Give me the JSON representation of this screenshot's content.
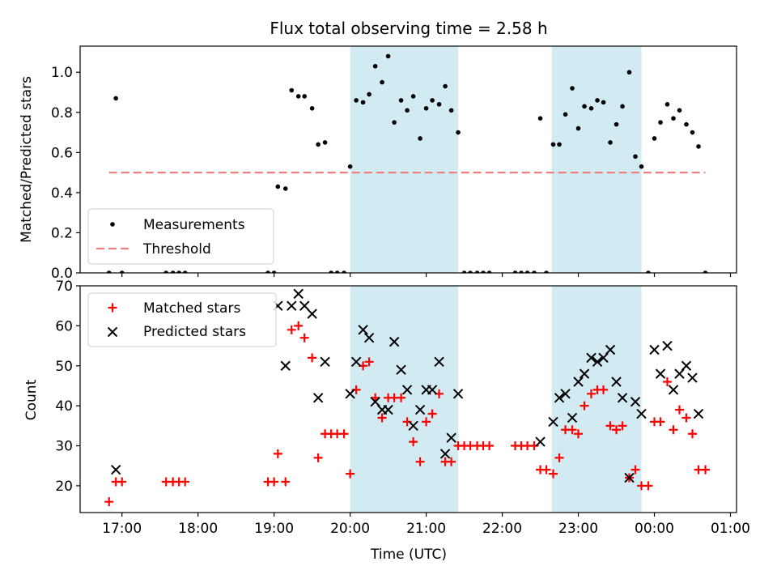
{
  "chart_data": [
    {
      "type": "scatter",
      "title": "Flux total observing time = 2.58 h",
      "ylabel": "Matched/Predicted stars",
      "xlabel": "",
      "ylim": [
        0,
        1.13
      ],
      "yticks": [
        0.0,
        0.2,
        0.4,
        0.6,
        0.8,
        1.0
      ],
      "ytick_labels": [
        "0.0",
        "0.2",
        "0.4",
        "0.6",
        "0.8",
        "1.0"
      ],
      "xlim_hours": [
        16.45,
        25.08
      ],
      "grid": false,
      "legend_position": "lower-left",
      "shaded_intervals_hours": [
        [
          20.0,
          21.42
        ],
        [
          22.65,
          23.83
        ]
      ],
      "shade_color": "#add8e6",
      "threshold": {
        "name": "Threshold",
        "value": 0.5,
        "x_range_hours": [
          16.83,
          24.67
        ],
        "color": "#f08080"
      },
      "series": [
        {
          "name": "Measurements",
          "color": "#000000",
          "marker": "dot",
          "points": [
            [
              16.83,
              0.0
            ],
            [
              16.92,
              0.87
            ],
            [
              17.0,
              0.0
            ],
            [
              17.58,
              0.0
            ],
            [
              17.67,
              0.0
            ],
            [
              17.75,
              0.0
            ],
            [
              17.83,
              0.0
            ],
            [
              18.92,
              0.0
            ],
            [
              19.0,
              0.0
            ],
            [
              19.05,
              0.43
            ],
            [
              19.15,
              0.42
            ],
            [
              19.23,
              0.91
            ],
            [
              19.32,
              0.88
            ],
            [
              19.4,
              0.88
            ],
            [
              19.5,
              0.82
            ],
            [
              19.58,
              0.64
            ],
            [
              19.67,
              0.65
            ],
            [
              19.75,
              0.0
            ],
            [
              19.83,
              0.0
            ],
            [
              19.92,
              0.0
            ],
            [
              20.0,
              0.53
            ],
            [
              20.08,
              0.86
            ],
            [
              20.17,
              0.85
            ],
            [
              20.25,
              0.89
            ],
            [
              20.33,
              1.03
            ],
            [
              20.42,
              0.95
            ],
            [
              20.5,
              1.08
            ],
            [
              20.58,
              0.75
            ],
            [
              20.67,
              0.86
            ],
            [
              20.75,
              0.81
            ],
            [
              20.83,
              0.88
            ],
            [
              20.92,
              0.67
            ],
            [
              21.0,
              0.82
            ],
            [
              21.08,
              0.86
            ],
            [
              21.17,
              0.84
            ],
            [
              21.25,
              0.93
            ],
            [
              21.33,
              0.81
            ],
            [
              21.42,
              0.7
            ],
            [
              21.5,
              0.0
            ],
            [
              21.58,
              0.0
            ],
            [
              21.67,
              0.0
            ],
            [
              21.75,
              0.0
            ],
            [
              21.83,
              0.0
            ],
            [
              22.17,
              0.0
            ],
            [
              22.25,
              0.0
            ],
            [
              22.33,
              0.0
            ],
            [
              22.42,
              0.0
            ],
            [
              22.5,
              0.77
            ],
            [
              22.58,
              0.0
            ],
            [
              22.67,
              0.64
            ],
            [
              22.75,
              0.64
            ],
            [
              22.83,
              0.79
            ],
            [
              22.92,
              0.92
            ],
            [
              23.0,
              0.72
            ],
            [
              23.08,
              0.83
            ],
            [
              23.17,
              0.82
            ],
            [
              23.25,
              0.86
            ],
            [
              23.33,
              0.85
            ],
            [
              23.42,
              0.65
            ],
            [
              23.5,
              0.74
            ],
            [
              23.58,
              0.83
            ],
            [
              23.67,
              1.0
            ],
            [
              23.75,
              0.58
            ],
            [
              23.83,
              0.53
            ],
            [
              23.92,
              0.0
            ],
            [
              24.0,
              0.67
            ],
            [
              24.08,
              0.75
            ],
            [
              24.17,
              0.84
            ],
            [
              24.25,
              0.77
            ],
            [
              24.33,
              0.81
            ],
            [
              24.42,
              0.74
            ],
            [
              24.5,
              0.7
            ],
            [
              24.58,
              0.63
            ],
            [
              24.67,
              0.0
            ]
          ]
        }
      ]
    },
    {
      "type": "scatter",
      "title": "",
      "ylabel": "Count",
      "xlabel": "Time (UTC)",
      "ylim": [
        13.3,
        70.0
      ],
      "yticks": [
        20,
        30,
        40,
        50,
        60,
        70
      ],
      "ytick_labels": [
        "20",
        "30",
        "40",
        "50",
        "60",
        "70"
      ],
      "xlim_hours": [
        16.45,
        25.08
      ],
      "xticks_hours": [
        17,
        18,
        19,
        20,
        21,
        22,
        23,
        24,
        25
      ],
      "xtick_labels": [
        "17:00",
        "18:00",
        "19:00",
        "20:00",
        "21:00",
        "22:00",
        "23:00",
        "00:00",
        "01:00"
      ],
      "grid": false,
      "legend_position": "upper-left",
      "shaded_intervals_hours": [
        [
          20.0,
          21.42
        ],
        [
          22.65,
          23.83
        ]
      ],
      "shade_color": "#add8e6",
      "series": [
        {
          "name": "Matched stars",
          "color": "#ff0000",
          "marker": "plus",
          "points": [
            [
              16.83,
              16
            ],
            [
              16.92,
              21
            ],
            [
              17.0,
              21
            ],
            [
              17.58,
              21
            ],
            [
              17.67,
              21
            ],
            [
              17.75,
              21
            ],
            [
              17.83,
              21
            ],
            [
              18.92,
              21
            ],
            [
              19.0,
              21
            ],
            [
              19.05,
              28
            ],
            [
              19.15,
              21
            ],
            [
              19.23,
              59
            ],
            [
              19.32,
              60
            ],
            [
              19.4,
              57
            ],
            [
              19.5,
              52
            ],
            [
              19.58,
              27
            ],
            [
              19.67,
              33
            ],
            [
              19.75,
              33
            ],
            [
              19.83,
              33
            ],
            [
              19.92,
              33
            ],
            [
              20.0,
              23
            ],
            [
              20.08,
              44
            ],
            [
              20.17,
              50
            ],
            [
              20.25,
              51
            ],
            [
              20.33,
              42
            ],
            [
              20.42,
              37
            ],
            [
              20.5,
              42
            ],
            [
              20.58,
              42
            ],
            [
              20.67,
              42
            ],
            [
              20.75,
              36
            ],
            [
              20.83,
              31
            ],
            [
              20.92,
              26
            ],
            [
              21.0,
              36
            ],
            [
              21.08,
              38
            ],
            [
              21.17,
              43
            ],
            [
              21.25,
              26
            ],
            [
              21.33,
              26
            ],
            [
              21.42,
              30
            ],
            [
              21.5,
              30
            ],
            [
              21.58,
              30
            ],
            [
              21.67,
              30
            ],
            [
              21.75,
              30
            ],
            [
              21.83,
              30
            ],
            [
              22.17,
              30
            ],
            [
              22.25,
              30
            ],
            [
              22.33,
              30
            ],
            [
              22.42,
              30
            ],
            [
              22.5,
              24
            ],
            [
              22.58,
              24
            ],
            [
              22.67,
              23
            ],
            [
              22.75,
              27
            ],
            [
              22.83,
              34
            ],
            [
              22.92,
              34
            ],
            [
              23.0,
              33
            ],
            [
              23.08,
              40
            ],
            [
              23.17,
              43
            ],
            [
              23.25,
              44
            ],
            [
              23.33,
              44
            ],
            [
              23.42,
              35
            ],
            [
              23.5,
              34
            ],
            [
              23.58,
              35
            ],
            [
              23.67,
              22
            ],
            [
              23.75,
              24
            ],
            [
              23.83,
              20
            ],
            [
              23.92,
              20
            ],
            [
              24.0,
              36
            ],
            [
              24.08,
              36
            ],
            [
              24.17,
              46
            ],
            [
              24.25,
              34
            ],
            [
              24.33,
              39
            ],
            [
              24.42,
              37
            ],
            [
              24.5,
              33
            ],
            [
              24.58,
              24
            ],
            [
              24.67,
              24
            ]
          ]
        },
        {
          "name": "Predicted stars",
          "color": "#000000",
          "marker": "x",
          "points": [
            [
              16.92,
              24
            ],
            [
              19.05,
              65
            ],
            [
              19.15,
              50
            ],
            [
              19.23,
              65
            ],
            [
              19.32,
              68
            ],
            [
              19.4,
              65
            ],
            [
              19.5,
              63
            ],
            [
              19.58,
              42
            ],
            [
              19.67,
              51
            ],
            [
              20.0,
              43
            ],
            [
              20.08,
              51
            ],
            [
              20.17,
              59
            ],
            [
              20.25,
              57
            ],
            [
              20.33,
              41
            ],
            [
              20.42,
              39
            ],
            [
              20.5,
              39
            ],
            [
              20.58,
              56
            ],
            [
              20.67,
              49
            ],
            [
              20.75,
              44
            ],
            [
              20.83,
              35
            ],
            [
              20.92,
              39
            ],
            [
              21.0,
              44
            ],
            [
              21.08,
              44
            ],
            [
              21.17,
              51
            ],
            [
              21.25,
              28
            ],
            [
              21.33,
              32
            ],
            [
              21.42,
              43
            ],
            [
              22.5,
              31
            ],
            [
              22.67,
              36
            ],
            [
              22.75,
              42
            ],
            [
              22.83,
              43
            ],
            [
              22.92,
              37
            ],
            [
              23.0,
              46
            ],
            [
              23.08,
              48
            ],
            [
              23.17,
              52
            ],
            [
              23.25,
              51
            ],
            [
              23.33,
              52
            ],
            [
              23.42,
              54
            ],
            [
              23.5,
              46
            ],
            [
              23.58,
              42
            ],
            [
              23.67,
              22
            ],
            [
              23.75,
              41
            ],
            [
              23.83,
              38
            ],
            [
              24.0,
              54
            ],
            [
              24.08,
              48
            ],
            [
              24.17,
              55
            ],
            [
              24.25,
              44
            ],
            [
              24.33,
              48
            ],
            [
              24.42,
              50
            ],
            [
              24.5,
              47
            ],
            [
              24.58,
              38
            ]
          ]
        }
      ]
    }
  ]
}
